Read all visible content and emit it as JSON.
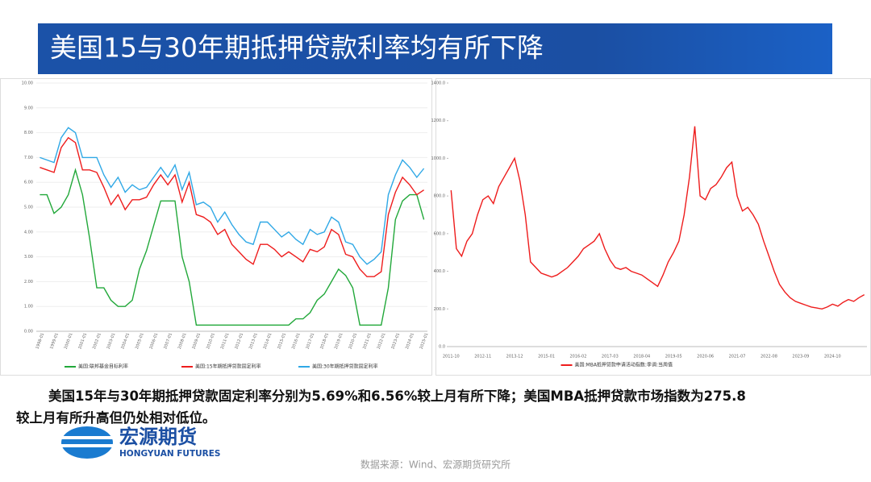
{
  "header": {
    "title": "美国15与30年期抵押贷款利率均有所下降"
  },
  "caption": {
    "line1": "美国15年与30年期抵押贷款固定利率分别为5.69%和6.56%较上月有所下降；美国MBA抵押贷款市场指数为275.8",
    "line2": "较上月有所升高但仍处相对低位。"
  },
  "logo": {
    "name": "宏源期货",
    "name_en": "HONGYUAN FUTURES"
  },
  "source": "数据来源：Wind、宏源期货研究所",
  "chart_data": [
    {
      "type": "line",
      "categories": [
        "1998-01",
        null,
        "1999-01",
        null,
        "2000-01",
        null,
        "2001-01",
        null,
        "2002-01",
        null,
        "2003-01",
        null,
        "2004-01",
        null,
        "2005-01",
        null,
        "2006-01",
        null,
        "2007-01",
        null,
        "2008-01",
        null,
        "2009-01",
        null,
        "2010-01",
        null,
        "2011-01",
        null,
        "2012-01",
        null,
        "2013-01",
        null,
        "2014-01",
        null,
        "2015-01",
        null,
        "2016-01",
        null,
        "2017-01",
        null,
        "2018-01",
        null,
        "2019-01",
        null,
        "2020-01",
        null,
        "2021-01",
        null,
        "2022-01",
        null,
        "2023-01",
        null,
        "2024-01",
        null,
        "2025-01"
      ],
      "series": [
        {
          "name": "美国:联邦基金目标利率",
          "color": "#22a83a",
          "values": [
            5.5,
            5.5,
            4.75,
            5.0,
            5.5,
            6.5,
            5.5,
            3.75,
            1.75,
            1.75,
            1.25,
            1.0,
            1.0,
            1.25,
            2.5,
            3.25,
            4.25,
            5.25,
            5.25,
            5.25,
            3.0,
            2.0,
            0.25,
            0.25,
            0.25,
            0.25,
            0.25,
            0.25,
            0.25,
            0.25,
            0.25,
            0.25,
            0.25,
            0.25,
            0.25,
            0.25,
            0.5,
            0.5,
            0.75,
            1.25,
            1.5,
            2.0,
            2.5,
            2.25,
            1.75,
            0.25,
            0.25,
            0.25,
            0.25,
            1.75,
            4.5,
            5.25,
            5.5,
            5.5,
            4.5
          ]
        },
        {
          "name": "美国:15年期抵押贷款固定利率",
          "color": "#ee1c1c",
          "values": [
            6.6,
            6.5,
            6.4,
            7.4,
            7.8,
            7.6,
            6.5,
            6.5,
            6.4,
            5.8,
            5.1,
            5.5,
            4.9,
            5.3,
            5.3,
            5.4,
            5.9,
            6.3,
            5.9,
            6.3,
            5.2,
            6.0,
            4.7,
            4.6,
            4.4,
            3.9,
            4.1,
            3.5,
            3.2,
            2.9,
            2.7,
            3.5,
            3.5,
            3.3,
            3.0,
            3.2,
            3.0,
            2.8,
            3.3,
            3.2,
            3.4,
            4.1,
            3.9,
            3.1,
            3.0,
            2.5,
            2.2,
            2.2,
            2.4,
            4.7,
            5.6,
            6.2,
            5.9,
            5.5,
            5.69
          ]
        },
        {
          "name": "美国:30年期抵押贷款固定利率",
          "color": "#2fa8e6",
          "values": [
            7.0,
            6.9,
            6.8,
            7.8,
            8.2,
            8.0,
            7.0,
            7.0,
            7.0,
            6.3,
            5.8,
            6.2,
            5.6,
            5.9,
            5.7,
            5.8,
            6.2,
            6.6,
            6.2,
            6.7,
            5.7,
            6.4,
            5.1,
            5.2,
            5.0,
            4.4,
            4.8,
            4.3,
            3.9,
            3.6,
            3.5,
            4.4,
            4.4,
            4.1,
            3.8,
            4.0,
            3.7,
            3.5,
            4.1,
            3.9,
            4.0,
            4.6,
            4.4,
            3.6,
            3.5,
            3.0,
            2.7,
            2.9,
            3.2,
            5.5,
            6.3,
            6.9,
            6.6,
            6.2,
            6.56
          ]
        }
      ],
      "ylim": [
        0,
        10
      ],
      "yticks": [
        {
          "value": 0,
          "label": "0.00"
        },
        {
          "value": 1,
          "label": "1.00"
        },
        {
          "value": 2,
          "label": "2.00"
        },
        {
          "value": 3,
          "label": "3.00"
        },
        {
          "value": 4,
          "label": "4.00"
        },
        {
          "value": 5,
          "label": "5.00"
        },
        {
          "value": 6,
          "label": "6.00"
        },
        {
          "value": 7,
          "label": "7.00"
        },
        {
          "value": 8,
          "label": "8.00"
        },
        {
          "value": 9,
          "label": "9.00"
        },
        {
          "value": 10,
          "label": "10.00"
        }
      ],
      "grid": true
    },
    {
      "type": "line",
      "categories": [
        "2011-10",
        null,
        null,
        null,
        null,
        null,
        "2012-11",
        null,
        null,
        null,
        null,
        null,
        "2013-12",
        null,
        null,
        null,
        null,
        null,
        "2015-01",
        null,
        null,
        null,
        null,
        null,
        "2016-02",
        null,
        null,
        null,
        null,
        null,
        "2017-03",
        null,
        null,
        null,
        null,
        null,
        "2018-04",
        null,
        null,
        null,
        null,
        null,
        "2019-05",
        null,
        null,
        null,
        null,
        null,
        "2020-06",
        null,
        null,
        null,
        null,
        null,
        "2021-07",
        null,
        null,
        null,
        null,
        null,
        "2022-08",
        null,
        null,
        null,
        null,
        null,
        "2023-09",
        null,
        null,
        null,
        null,
        null,
        "2024-10",
        null,
        null,
        null,
        null,
        null,
        null
      ],
      "series": [
        {
          "name": "美国:MBA抵押贷款申请活动指数:季调:当周值",
          "color": "#ee1c1c",
          "values": [
            830,
            520,
            480,
            560,
            600,
            700,
            780,
            800,
            760,
            850,
            900,
            950,
            1000,
            880,
            700,
            450,
            420,
            390,
            380,
            370,
            380,
            400,
            420,
            450,
            480,
            520,
            540,
            560,
            600,
            520,
            460,
            420,
            410,
            420,
            400,
            390,
            380,
            360,
            340,
            320,
            380,
            450,
            500,
            560,
            700,
            900,
            1170,
            800,
            780,
            840,
            860,
            900,
            950,
            980,
            800,
            720,
            740,
            700,
            650,
            560,
            480,
            400,
            330,
            290,
            260,
            240,
            230,
            220,
            210,
            205,
            200,
            210,
            225,
            215,
            235,
            250,
            240,
            260,
            275.8
          ]
        }
      ],
      "ylim": [
        0,
        1400
      ],
      "yticks": [
        {
          "value": 0,
          "label": "0.0"
        },
        {
          "value": 200,
          "label": "200.0"
        },
        {
          "value": 400,
          "label": "400.0"
        },
        {
          "value": 600,
          "label": "600.0"
        },
        {
          "value": 800,
          "label": "800.0"
        },
        {
          "value": 1000,
          "label": "1000.0"
        },
        {
          "value": 1200,
          "label": "1200.0"
        },
        {
          "value": 1400,
          "label": "1400.0"
        }
      ],
      "grid": false
    }
  ]
}
